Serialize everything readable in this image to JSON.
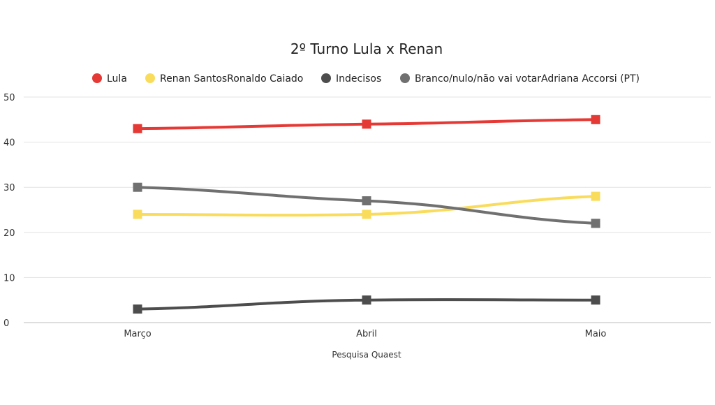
{
  "chart_data": {
    "type": "line",
    "title": "2º Turno Lula x Renan",
    "xlabel": "Pesquisa Quaest",
    "ylabel": "",
    "categories": [
      "Março",
      "Abril",
      "Maio"
    ],
    "ylim": [
      0,
      50
    ],
    "yticks": [
      0,
      10,
      20,
      30,
      40,
      50
    ],
    "grid": true,
    "legend_position": "top",
    "series": [
      {
        "name": "Lula",
        "color": "#e53935",
        "values": [
          43,
          44,
          45
        ]
      },
      {
        "name": "Renan SantosRonaldo Caiado",
        "color": "#f9dc5c",
        "values": [
          24,
          24,
          28
        ]
      },
      {
        "name": "Indecisos",
        "color": "#4d4d4d",
        "values": [
          3,
          5,
          5
        ]
      },
      {
        "name": "Branco/nulo/não vai votarAdriana Accorsi (PT)",
        "color": "#707070",
        "values": [
          30,
          27,
          22
        ]
      }
    ]
  }
}
